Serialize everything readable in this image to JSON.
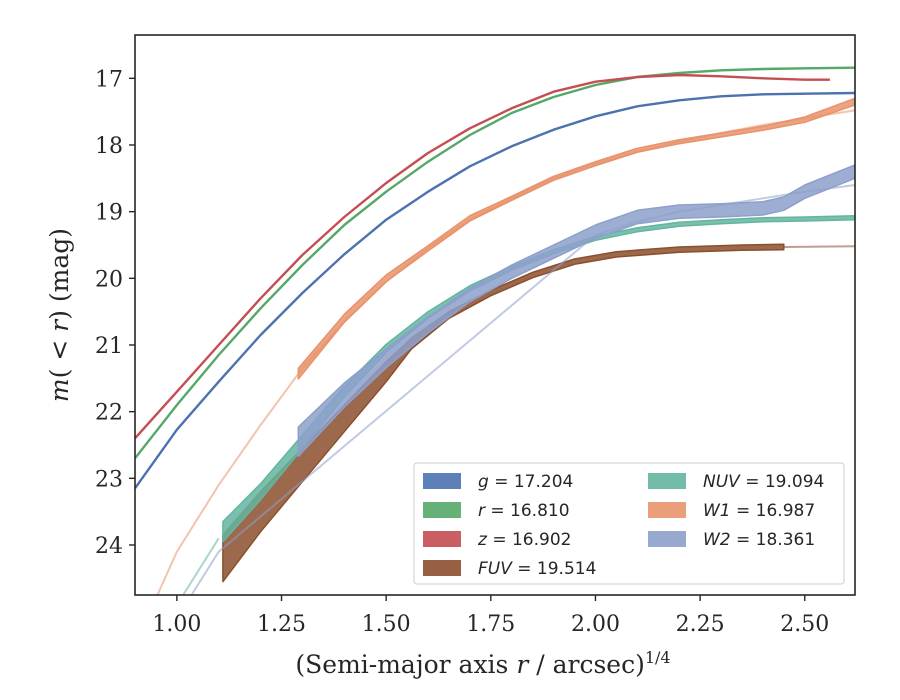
{
  "chart_data": {
    "type": "line",
    "xlabel_main": "(Semi-major axis ",
    "xlabel_var": "r",
    "xlabel_tail": " / arcsec)",
    "xlabel_exp": "1/4",
    "ylabel_main": "m",
    "ylabel_open": "(",
    "ylabel_lt": " < ",
    "ylabel_var": "r",
    "ylabel_close": ")",
    "ylabel_unit": " (mag)",
    "xlim": [
      0.9,
      2.62
    ],
    "ylim": [
      24.75,
      16.35
    ],
    "y_inverted": true,
    "grid": false,
    "legend_placement": "lower-right",
    "x_ticks": [
      "1.00",
      "1.25",
      "1.50",
      "1.75",
      "2.00",
      "2.25",
      "2.50"
    ],
    "x_tick_values": [
      1.0,
      1.25,
      1.5,
      1.75,
      2.0,
      2.25,
      2.5
    ],
    "y_ticks": [
      "17",
      "18",
      "19",
      "20",
      "21",
      "22",
      "23",
      "24"
    ],
    "y_tick_values": [
      17,
      18,
      19,
      20,
      21,
      22,
      23,
      24
    ],
    "series": [
      {
        "name": "g",
        "value": "17.204",
        "color": "#4c72b0",
        "data": [
          [
            0.9,
            23.15
          ],
          [
            1.0,
            22.27
          ],
          [
            1.1,
            21.55
          ],
          [
            1.2,
            20.85
          ],
          [
            1.3,
            20.22
          ],
          [
            1.4,
            19.64
          ],
          [
            1.5,
            19.12
          ],
          [
            1.6,
            18.7
          ],
          [
            1.7,
            18.32
          ],
          [
            1.8,
            18.02
          ],
          [
            1.9,
            17.77
          ],
          [
            2.0,
            17.57
          ],
          [
            2.1,
            17.42
          ],
          [
            2.2,
            17.33
          ],
          [
            2.3,
            17.27
          ],
          [
            2.4,
            17.24
          ],
          [
            2.5,
            17.23
          ],
          [
            2.62,
            17.22
          ]
        ]
      },
      {
        "name": "r",
        "value": "16.810",
        "color": "#55a868",
        "data": [
          [
            0.9,
            22.7
          ],
          [
            1.0,
            21.9
          ],
          [
            1.1,
            21.15
          ],
          [
            1.2,
            20.45
          ],
          [
            1.3,
            19.8
          ],
          [
            1.4,
            19.2
          ],
          [
            1.5,
            18.7
          ],
          [
            1.6,
            18.25
          ],
          [
            1.7,
            17.85
          ],
          [
            1.8,
            17.52
          ],
          [
            1.9,
            17.28
          ],
          [
            2.0,
            17.1
          ],
          [
            2.1,
            16.98
          ],
          [
            2.2,
            16.92
          ],
          [
            2.3,
            16.88
          ],
          [
            2.4,
            16.86
          ],
          [
            2.5,
            16.85
          ],
          [
            2.62,
            16.84
          ]
        ]
      },
      {
        "name": "z",
        "value": "16.902",
        "color": "#c44e52",
        "data": [
          [
            0.9,
            22.4
          ],
          [
            1.0,
            21.7
          ],
          [
            1.1,
            21.0
          ],
          [
            1.2,
            20.3
          ],
          [
            1.3,
            19.65
          ],
          [
            1.4,
            19.08
          ],
          [
            1.5,
            18.57
          ],
          [
            1.6,
            18.12
          ],
          [
            1.7,
            17.75
          ],
          [
            1.8,
            17.45
          ],
          [
            1.9,
            17.2
          ],
          [
            2.0,
            17.05
          ],
          [
            2.1,
            16.98
          ],
          [
            2.2,
            16.95
          ],
          [
            2.3,
            16.97
          ],
          [
            2.4,
            17.0
          ],
          [
            2.5,
            17.02
          ],
          [
            2.56,
            17.02
          ]
        ]
      },
      {
        "name": "FUV",
        "value": "19.514",
        "color": "#8c4f2d",
        "band": [
          [
            1.11,
            24.2
          ],
          [
            1.2,
            23.5
          ],
          [
            1.3,
            22.8
          ],
          [
            1.4,
            22.1
          ],
          [
            1.5,
            21.4
          ],
          [
            1.56,
            20.98
          ],
          [
            1.65,
            20.55
          ],
          [
            1.75,
            20.22
          ],
          [
            1.85,
            19.95
          ],
          [
            1.95,
            19.75
          ],
          [
            2.05,
            19.64
          ],
          [
            2.2,
            19.57
          ],
          [
            2.35,
            19.54
          ],
          [
            2.45,
            19.53
          ]
        ],
        "band_half_widths": [
          0.35,
          0.3,
          0.25,
          0.2,
          0.15,
          0.08,
          0.05,
          0.04,
          0.04,
          0.04,
          0.04,
          0.04,
          0.04,
          0.04
        ],
        "model": [
          [
            2.45,
            19.53
          ],
          [
            2.62,
            19.52
          ]
        ]
      },
      {
        "name": "NUV",
        "value": "19.094",
        "color": "#64b5a0",
        "band": [
          [
            1.11,
            23.8
          ],
          [
            1.2,
            23.2
          ],
          [
            1.3,
            22.45
          ],
          [
            1.4,
            21.7
          ],
          [
            1.5,
            21.05
          ],
          [
            1.6,
            20.55
          ],
          [
            1.7,
            20.15
          ],
          [
            1.8,
            19.85
          ],
          [
            1.9,
            19.6
          ],
          [
            2.0,
            19.4
          ],
          [
            2.1,
            19.27
          ],
          [
            2.2,
            19.19
          ],
          [
            2.3,
            19.15
          ],
          [
            2.4,
            19.12
          ],
          [
            2.5,
            19.11
          ],
          [
            2.62,
            19.09
          ]
        ],
        "band_half_widths": [
          0.15,
          0.12,
          0.1,
          0.08,
          0.06,
          0.05,
          0.04,
          0.03,
          0.03,
          0.03,
          0.03,
          0.03,
          0.03,
          0.03,
          0.03,
          0.03
        ],
        "model": [
          [
            0.9,
            25.8
          ],
          [
            1.0,
            24.9
          ],
          [
            1.1,
            23.9
          ]
        ]
      },
      {
        "name": "W1",
        "value": "16.987",
        "color": "#e8936b",
        "band": [
          [
            1.29,
            21.43
          ],
          [
            1.4,
            20.6
          ],
          [
            1.5,
            20.0
          ],
          [
            1.6,
            19.55
          ],
          [
            1.7,
            19.1
          ],
          [
            1.8,
            18.8
          ],
          [
            1.9,
            18.5
          ],
          [
            2.0,
            18.28
          ],
          [
            2.1,
            18.08
          ],
          [
            2.2,
            17.95
          ],
          [
            2.3,
            17.85
          ],
          [
            2.4,
            17.75
          ],
          [
            2.5,
            17.62
          ],
          [
            2.62,
            17.35
          ]
        ],
        "band_half_widths": [
          0.08,
          0.06,
          0.05,
          0.04,
          0.04,
          0.03,
          0.03,
          0.03,
          0.03,
          0.03,
          0.03,
          0.03,
          0.04,
          0.05
        ],
        "model": [
          [
            0.95,
            24.8
          ],
          [
            1.0,
            24.1
          ],
          [
            1.1,
            23.1
          ],
          [
            1.2,
            22.2
          ],
          [
            1.3,
            21.35
          ],
          [
            1.4,
            20.65
          ],
          [
            1.5,
            20.05
          ],
          [
            1.6,
            19.55
          ],
          [
            1.7,
            19.12
          ],
          [
            1.8,
            18.8
          ],
          [
            1.9,
            18.5
          ],
          [
            2.0,
            18.28
          ],
          [
            2.1,
            18.1
          ],
          [
            2.2,
            17.95
          ],
          [
            2.3,
            17.82
          ],
          [
            2.4,
            17.7
          ],
          [
            2.5,
            17.6
          ],
          [
            2.62,
            17.48
          ]
        ]
      },
      {
        "name": "W2",
        "value": "18.361",
        "color": "#8da0cb",
        "band": [
          [
            1.29,
            22.45
          ],
          [
            1.4,
            21.75
          ],
          [
            1.5,
            21.2
          ],
          [
            1.6,
            20.7
          ],
          [
            1.7,
            20.25
          ],
          [
            1.8,
            19.9
          ],
          [
            1.9,
            19.6
          ],
          [
            2.0,
            19.3
          ],
          [
            2.1,
            19.08
          ],
          [
            2.2,
            19.0
          ],
          [
            2.3,
            18.98
          ],
          [
            2.4,
            18.95
          ],
          [
            2.45,
            18.88
          ],
          [
            2.5,
            18.7
          ],
          [
            2.62,
            18.4
          ]
        ],
        "band_half_widths": [
          0.22,
          0.18,
          0.14,
          0.12,
          0.1,
          0.1,
          0.1,
          0.1,
          0.1,
          0.1,
          0.1,
          0.1,
          0.1,
          0.1,
          0.1
        ],
        "model": [
          [
            0.9,
            26.3
          ],
          [
            1.0,
            25.1
          ],
          [
            1.1,
            24.1
          ],
          [
            2.0,
            19.35
          ],
          [
            2.1,
            19.15
          ],
          [
            2.2,
            19.0
          ],
          [
            2.3,
            18.9
          ],
          [
            2.4,
            18.8
          ],
          [
            2.5,
            18.7
          ],
          [
            2.62,
            18.6
          ]
        ]
      }
    ]
  }
}
